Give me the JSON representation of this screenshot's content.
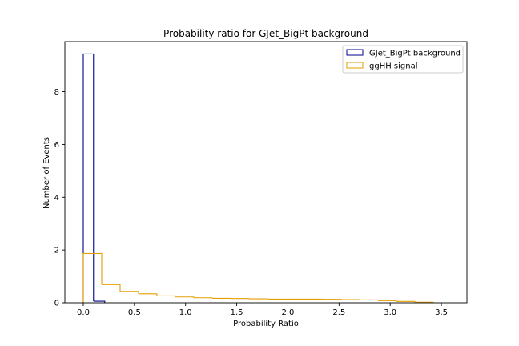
{
  "chart_data": {
    "type": "histogram",
    "title": "Probability ratio for GJet_BigPt background",
    "xlabel": "Probability Ratio",
    "ylabel": "Number of Events",
    "xlim": [
      -0.18,
      3.75
    ],
    "ylim": [
      0,
      9.9
    ],
    "xticks": [
      {
        "value": 0.0,
        "label": "0.0"
      },
      {
        "value": 0.5,
        "label": "0.5"
      },
      {
        "value": 1.0,
        "label": "1.0"
      },
      {
        "value": 1.5,
        "label": "1.5"
      },
      {
        "value": 2.0,
        "label": "2.0"
      },
      {
        "value": 2.5,
        "label": "2.5"
      },
      {
        "value": 3.0,
        "label": "3.0"
      },
      {
        "value": 3.5,
        "label": "3.5"
      }
    ],
    "yticks": [
      {
        "value": 0,
        "label": "0"
      },
      {
        "value": 2,
        "label": "2"
      },
      {
        "value": 4,
        "label": "4"
      },
      {
        "value": 6,
        "label": "6"
      },
      {
        "value": 8,
        "label": "8"
      }
    ],
    "grid": false,
    "legend_position": "top-right",
    "series": [
      {
        "name": "GJet_BigPt background",
        "color": "#00008b",
        "edges": [
          0.0,
          0.1,
          0.21
        ],
        "values": [
          9.43,
          0.06
        ]
      },
      {
        "name": "ggHH signal",
        "color": "#e69f00",
        "edges": [
          0.0,
          0.18,
          0.36,
          0.54,
          0.72,
          0.9,
          1.08,
          1.26,
          1.44,
          1.62,
          1.8,
          1.98,
          2.16,
          2.34,
          2.52,
          2.7,
          2.88,
          3.06,
          3.24,
          3.42
        ],
        "values": [
          1.87,
          0.69,
          0.43,
          0.34,
          0.26,
          0.22,
          0.19,
          0.17,
          0.16,
          0.15,
          0.14,
          0.14,
          0.14,
          0.13,
          0.12,
          0.11,
          0.08,
          0.05,
          0.02
        ]
      }
    ]
  }
}
